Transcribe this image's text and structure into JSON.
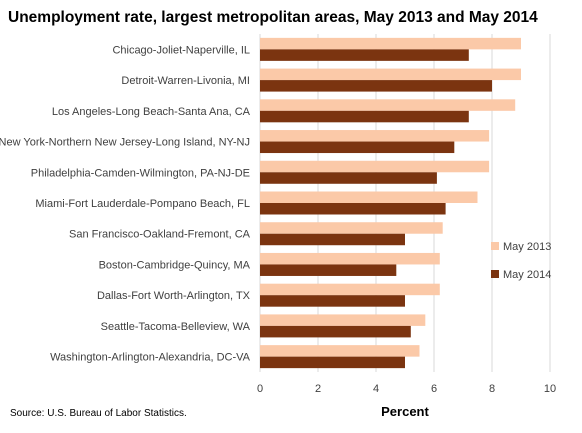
{
  "chart_data": {
    "type": "bar",
    "orientation": "horizontal",
    "title": "Unemployment rate, largest metropolitan areas, May 2013 and May 2014",
    "xlabel": "Percent",
    "ylabel": "",
    "xlim": [
      0,
      10
    ],
    "xticks": [
      0,
      2,
      4,
      6,
      8,
      10
    ],
    "grid": true,
    "legend_position": "right",
    "categories": [
      "Chicago-Joliet-Naperville, IL",
      "Detroit-Warren-Livonia, MI",
      "Los Angeles-Long Beach-Santa Ana, CA",
      "New York-Northern New Jersey-Long Island, NY-NJ",
      "Philadelphia-Camden-Wilmington, PA-NJ-DE",
      "Miami-Fort Lauderdale-Pompano Beach, FL",
      "San Francisco-Oakland-Fremont, CA",
      "Boston-Cambridge-Quincy, MA",
      "Dallas-Fort Worth-Arlington, TX",
      "Seattle-Tacoma-Belleview, WA",
      "Washington-Arlington-Alexandria, DC-VA"
    ],
    "series": [
      {
        "name": "May 2013",
        "color": "#FBC9A8",
        "values": [
          9.0,
          9.0,
          8.8,
          7.9,
          7.9,
          7.5,
          6.3,
          6.2,
          6.2,
          5.7,
          5.5
        ]
      },
      {
        "name": "May 2014",
        "color": "#7B3410",
        "values": [
          7.2,
          8.0,
          7.2,
          6.7,
          6.1,
          6.4,
          5.0,
          4.7,
          5.0,
          5.2,
          5.0
        ]
      }
    ]
  },
  "source": "Source: U.S. Bureau of Labor Statistics."
}
